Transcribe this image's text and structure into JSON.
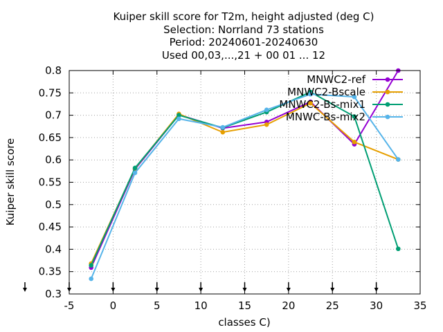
{
  "chart_data": {
    "type": "line",
    "title_lines": [
      "Kuiper skill score  for T2m, height adjusted (deg C)",
      "Selection: Norrland      73 stations",
      "Period: 20240601-20240630",
      "Used 00,03,...,21 + 00 01 ... 12"
    ],
    "xlabel": "classes C)",
    "ylabel": "Kuiper skill score",
    "xlim": [
      -5,
      35
    ],
    "ylim": [
      0.3,
      0.8
    ],
    "xticks": [
      -5,
      0,
      5,
      10,
      15,
      20,
      25,
      30,
      35
    ],
    "yticks": [
      0.3,
      0.35,
      0.4,
      0.45,
      0.5,
      0.55,
      0.6,
      0.65,
      0.7,
      0.75,
      0.8
    ],
    "xtick_labels": [
      "-5",
      "0",
      "5",
      "10",
      "15",
      "20",
      "25",
      "30",
      "35"
    ],
    "ytick_labels": [
      "0.3",
      "0.35",
      "0.4",
      "0.45",
      "0.5",
      "0.55",
      "0.6",
      "0.65",
      "0.7",
      "0.75",
      "0.8"
    ],
    "grid": true,
    "legend_position": "top-right",
    "class_markers_x": [
      -2.5,
      2.5,
      7.5,
      12.5,
      17.5,
      22.5,
      27.5,
      32.5
    ],
    "series": [
      {
        "name": "MNWC2-ref",
        "color": "#9400d3",
        "x": [
          -2.5,
          2.5,
          7.5,
          12.5,
          17.5,
          22.5,
          27.5,
          32.5
        ],
        "y": [
          0.359,
          0.579,
          0.701,
          0.671,
          0.685,
          0.73,
          0.635,
          0.8
        ]
      },
      {
        "name": "MNWC2-Bscale",
        "color": "#e69f00",
        "x": [
          -2.5,
          2.5,
          7.5,
          12.5,
          17.5,
          22.5,
          27.5,
          32.5
        ],
        "y": [
          0.368,
          0.581,
          0.703,
          0.662,
          0.679,
          0.727,
          0.64,
          0.601
        ]
      },
      {
        "name": "MNWC2-Bs-mix1",
        "color": "#009e73",
        "x": [
          -2.5,
          2.5,
          7.5,
          12.5,
          17.5,
          22.5,
          27.5,
          32.5
        ],
        "y": [
          0.364,
          0.582,
          0.7,
          0.672,
          0.707,
          0.752,
          0.697,
          0.401
        ]
      },
      {
        "name": "MNWC-Bs-mix2",
        "color": "#56b4e9",
        "x": [
          -2.5,
          2.5,
          7.5,
          12.5,
          17.5,
          22.5,
          27.5,
          32.5
        ],
        "y": [
          0.334,
          0.571,
          0.692,
          0.673,
          0.712,
          0.747,
          0.741,
          0.601
        ]
      }
    ]
  }
}
